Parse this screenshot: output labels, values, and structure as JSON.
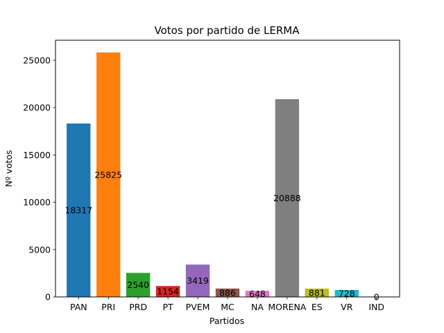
{
  "chart_data": {
    "type": "bar",
    "title": "Votos por partido de LERMA",
    "xlabel": "Partidos",
    "ylabel": "Nº votos",
    "categories": [
      "PAN",
      "PRI",
      "PRD",
      "PT",
      "PVEM",
      "MC",
      "NA",
      "MORENA",
      "ES",
      "VR",
      "IND"
    ],
    "values": [
      18317,
      25825,
      2540,
      1154,
      3419,
      886,
      648,
      20888,
      881,
      728,
      0
    ],
    "value_labels": [
      "18317",
      "25825",
      "2540",
      "1154",
      "3419",
      "886",
      "648",
      "20888",
      "881",
      "728",
      "0"
    ],
    "colors": [
      "#1f77b4",
      "#ff7f0e",
      "#2ca02c",
      "#d62728",
      "#9467bd",
      "#8c564b",
      "#e377c2",
      "#7f7f7f",
      "#bcbd22",
      "#17becf",
      "#1f77b4"
    ],
    "ylim": [
      0,
      27116
    ],
    "yticks": [
      0,
      5000,
      10000,
      15000,
      20000,
      25000
    ],
    "ytick_labels": [
      "0",
      "5000",
      "10000",
      "15000",
      "20000",
      "25000"
    ],
    "grid": false,
    "legend": "none"
  }
}
